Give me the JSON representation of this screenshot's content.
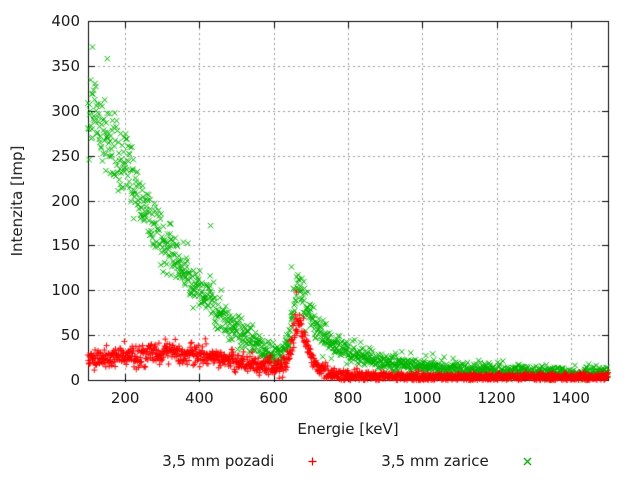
{
  "figure": {
    "background": "#ffffff",
    "text_color": "#1a1a1a"
  },
  "chart_data": {
    "type": "scatter",
    "title": "",
    "xlabel": "Energie [keV]",
    "ylabel": "Intenzita [Imp]",
    "xlim": [
      100,
      1500
    ],
    "ylim": [
      0,
      400
    ],
    "xticks": [
      200,
      400,
      600,
      800,
      1000,
      1200,
      1400
    ],
    "yticks": [
      0,
      50,
      100,
      150,
      200,
      250,
      300,
      350,
      400
    ],
    "grid": true,
    "grid_style": "dotted",
    "colors": {
      "axis": "#000000",
      "grid": "#999999",
      "series_red": "#ff0000",
      "series_green": "#00b400"
    },
    "legend": {
      "position": "bottom-center",
      "entries": [
        {
          "label": "3,5 mm pozadi",
          "marker": "plus",
          "color": "#ff0000"
        },
        {
          "label": "3,5 mm zarice",
          "marker": "cross",
          "color": "#00b400"
        }
      ]
    },
    "series": [
      {
        "name": "3,5 mm zarice",
        "marker": "cross",
        "color": "#00b400",
        "seed": 424242,
        "x_start": 100,
        "x_end": 1500,
        "x_step": 1,
        "envelope": [
          [
            100,
            305
          ],
          [
            115,
            292
          ],
          [
            130,
            280
          ],
          [
            150,
            268
          ],
          [
            175,
            255
          ],
          [
            200,
            240
          ],
          [
            225,
            215
          ],
          [
            250,
            192
          ],
          [
            280,
            168
          ],
          [
            310,
            148
          ],
          [
            340,
            130
          ],
          [
            370,
            115
          ],
          [
            400,
            103
          ],
          [
            430,
            88
          ],
          [
            460,
            72
          ],
          [
            490,
            60
          ],
          [
            520,
            50
          ],
          [
            550,
            42
          ],
          [
            580,
            33
          ],
          [
            605,
            28
          ],
          [
            625,
            31
          ],
          [
            640,
            45
          ],
          [
            650,
            66
          ],
          [
            658,
            92
          ],
          [
            665,
            106
          ],
          [
            672,
            101
          ],
          [
            680,
            93
          ],
          [
            695,
            77
          ],
          [
            710,
            64
          ],
          [
            725,
            54
          ],
          [
            745,
            44
          ],
          [
            770,
            36
          ],
          [
            800,
            30
          ],
          [
            840,
            26
          ],
          [
            880,
            22
          ],
          [
            930,
            19
          ],
          [
            980,
            16
          ],
          [
            1040,
            14
          ],
          [
            1100,
            12
          ],
          [
            1200,
            10
          ],
          [
            1300,
            9
          ],
          [
            1400,
            8
          ],
          [
            1500,
            8
          ]
        ],
        "noise": {
          "coef": 1.15,
          "base": 0.5
        },
        "outliers": [
          [
            112,
            371
          ],
          [
            152,
            358
          ],
          [
            323,
            174
          ],
          [
            648,
            126
          ],
          [
            430,
            172
          ]
        ]
      },
      {
        "name": "3,5 mm pozadi",
        "marker": "plus",
        "color": "#ff0000",
        "seed": 1337,
        "x_start": 100,
        "x_end": 1500,
        "x_step": 1,
        "envelope": [
          [
            100,
            24
          ],
          [
            140,
            25
          ],
          [
            180,
            26
          ],
          [
            220,
            27
          ],
          [
            260,
            29
          ],
          [
            300,
            30
          ],
          [
            340,
            30
          ],
          [
            380,
            28
          ],
          [
            420,
            27
          ],
          [
            460,
            24
          ],
          [
            500,
            21
          ],
          [
            540,
            18
          ],
          [
            570,
            15
          ],
          [
            600,
            14
          ],
          [
            620,
            15
          ],
          [
            635,
            20
          ],
          [
            645,
            30
          ],
          [
            653,
            48
          ],
          [
            660,
            62
          ],
          [
            666,
            68
          ],
          [
            672,
            62
          ],
          [
            680,
            50
          ],
          [
            690,
            38
          ],
          [
            700,
            28
          ],
          [
            712,
            20
          ],
          [
            724,
            13
          ],
          [
            740,
            9
          ],
          [
            760,
            6
          ],
          [
            790,
            5
          ],
          [
            850,
            4
          ],
          [
            950,
            3.5
          ],
          [
            1100,
            3
          ],
          [
            1300,
            3
          ],
          [
            1500,
            3
          ]
        ],
        "noise": {
          "coef": 1.05,
          "base": 0.4
        },
        "outliers": [
          [
            198,
            43
          ],
          [
            661,
            98
          ]
        ]
      }
    ]
  }
}
